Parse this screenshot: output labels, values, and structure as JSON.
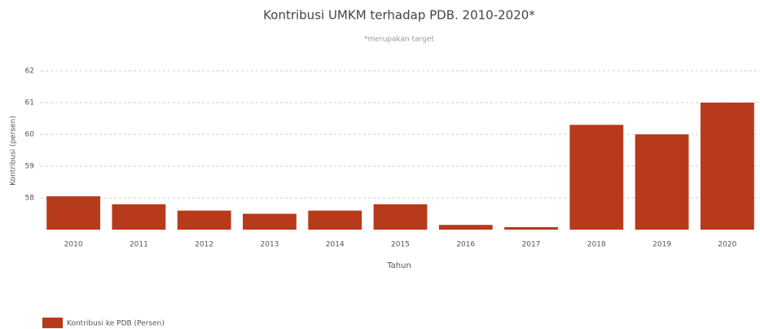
{
  "chart_data": {
    "type": "bar",
    "title": "Kontribusi UMKM terhadap PDB. 2010-2020*",
    "subtitle": "*merupakan target",
    "x_label": "Tahun",
    "y_label": "Kontribusi (persen)",
    "categories": [
      "2010",
      "2011",
      "2012",
      "2013",
      "2014",
      "2015",
      "2016",
      "2017",
      "2018",
      "2019",
      "2020"
    ],
    "series": [
      {
        "name": "Kontribusi ke PDB (Persen)",
        "color": "#b83a1c",
        "values": [
          58.05,
          57.8,
          57.6,
          57.5,
          57.6,
          57.8,
          57.15,
          57.08,
          60.3,
          60.0,
          61.0
        ]
      }
    ],
    "ylim": [
      57,
      62
    ],
    "yticks": [
      58,
      59,
      60,
      61,
      62
    ],
    "grid": true,
    "legend": "bottom-left"
  }
}
